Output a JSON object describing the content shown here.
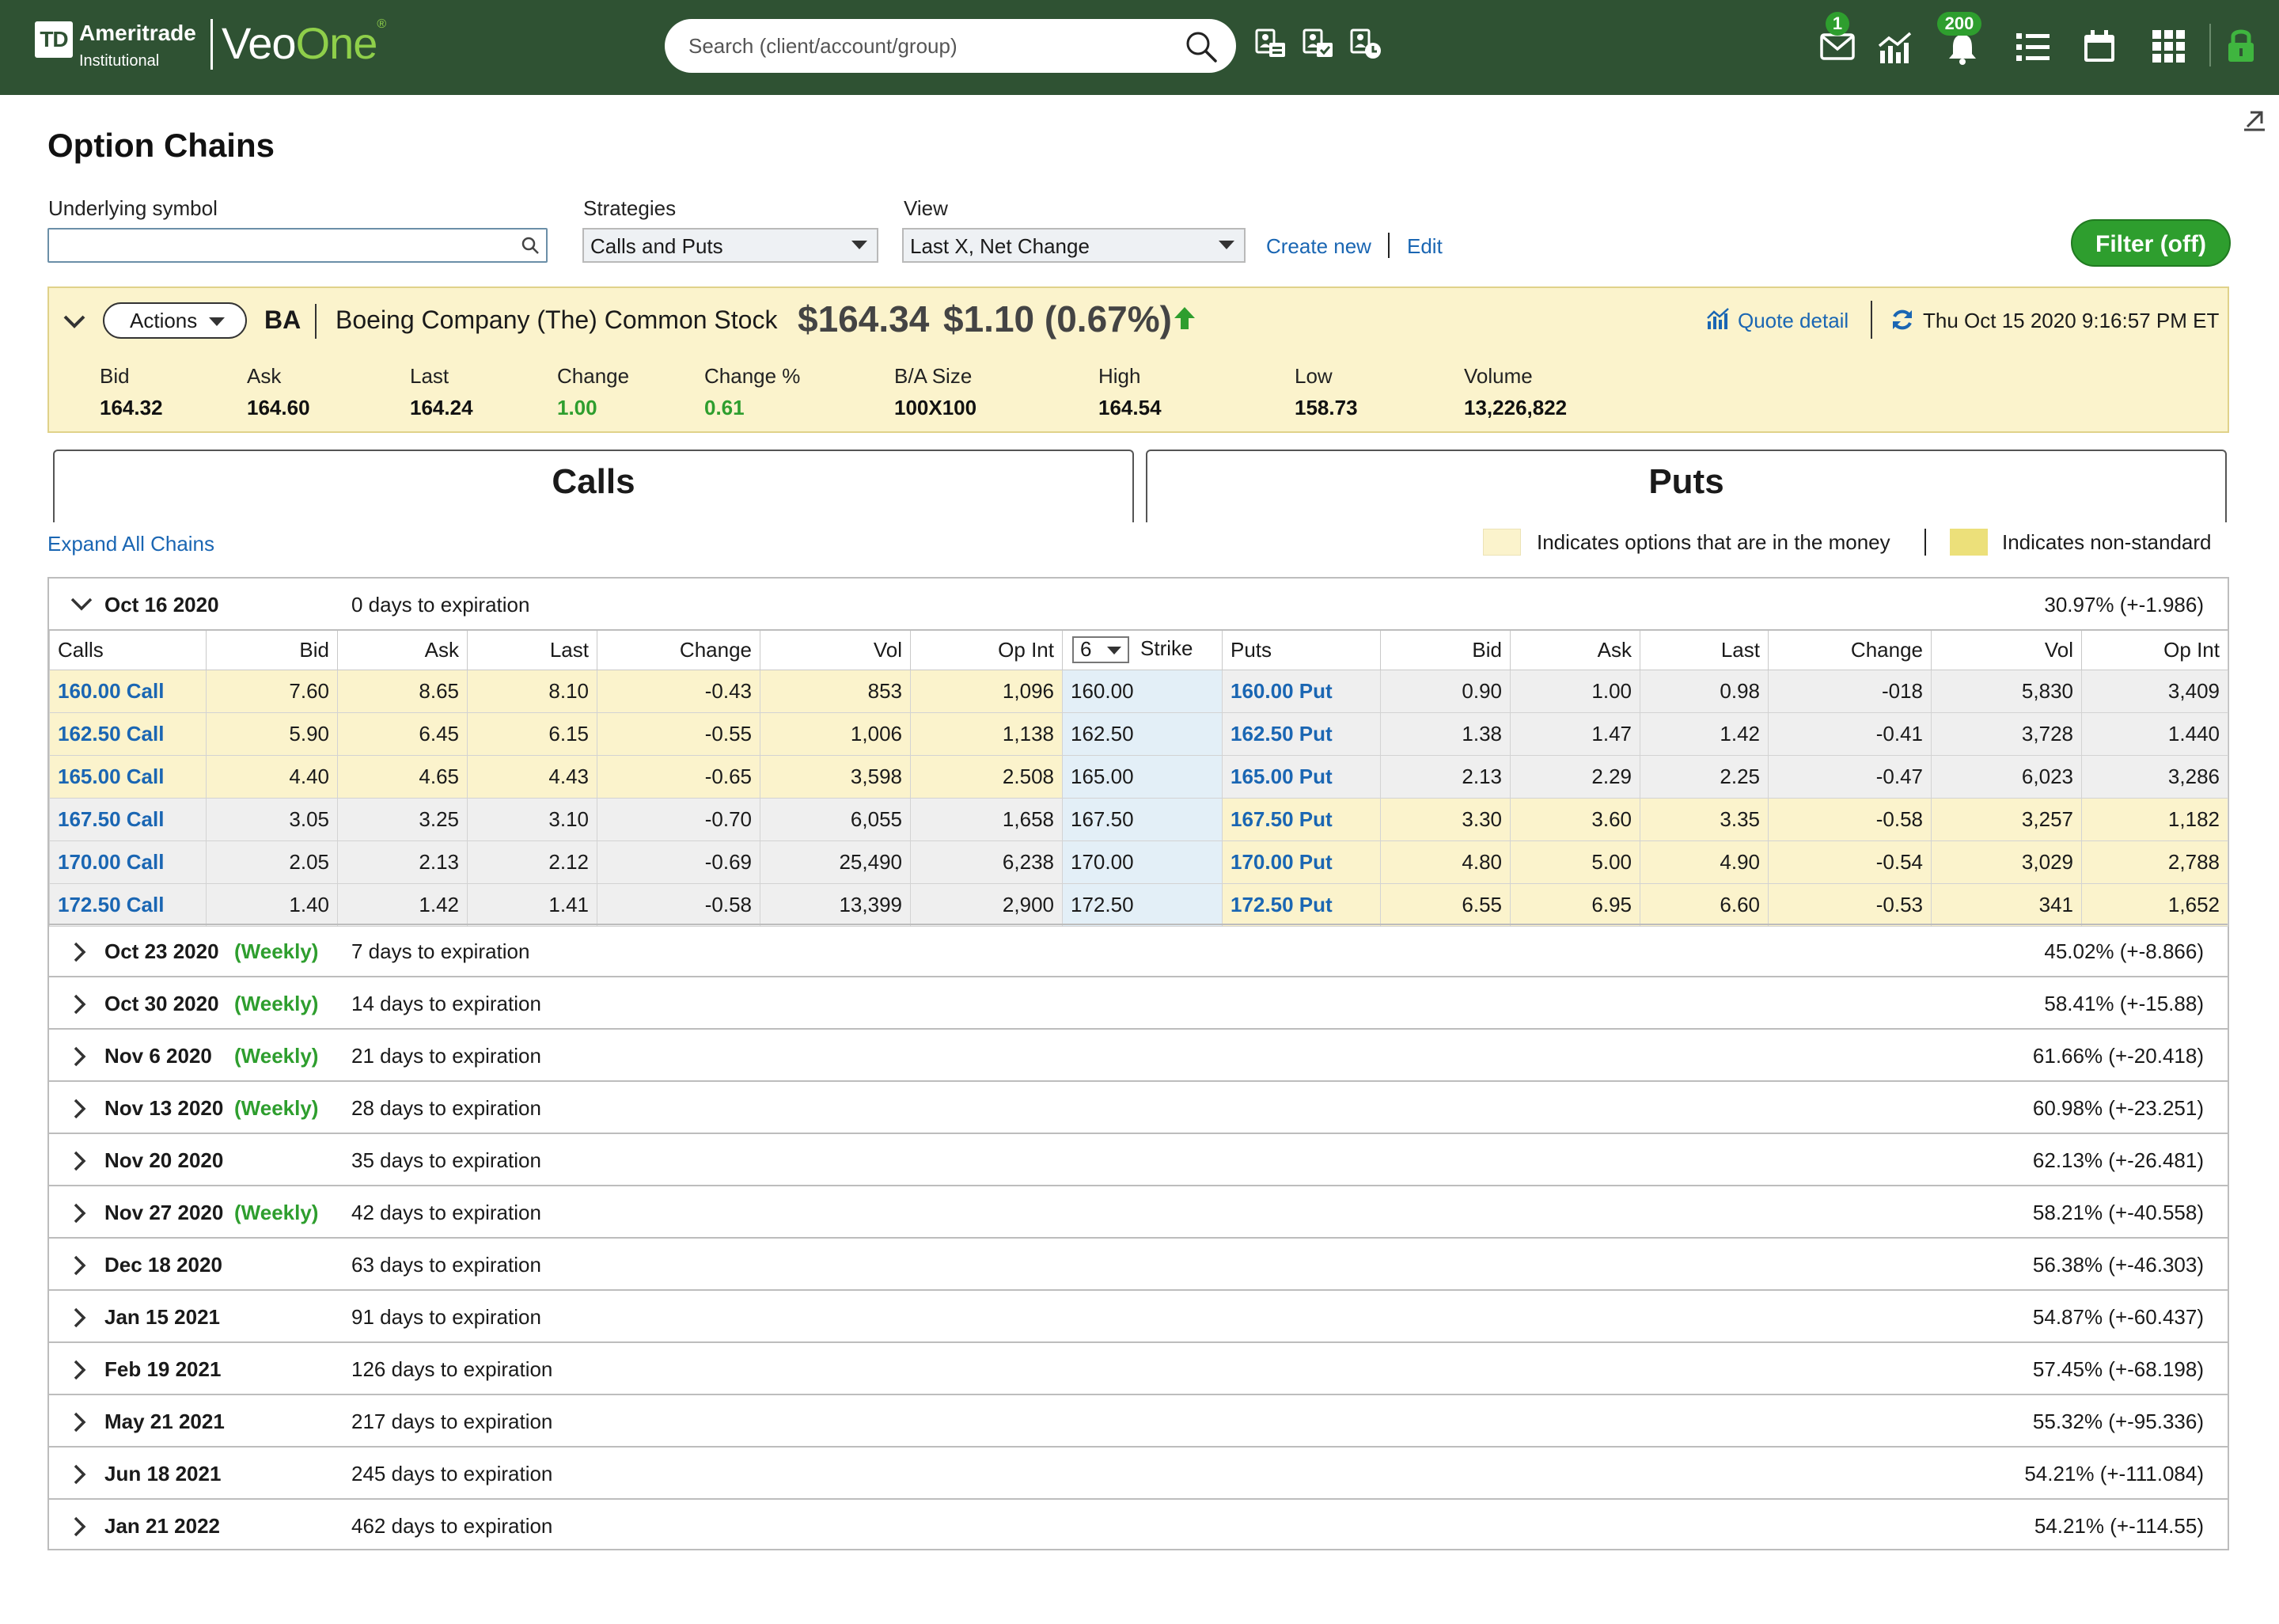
{
  "header": {
    "brand_mark": "TD",
    "brand_name": "Ameritrade",
    "brand_sub": "Institutional",
    "product_a": "Veo",
    "product_b": "One",
    "product_reg": "®",
    "search_placeholder": "Search (client/account/group)",
    "mail_badge": "1",
    "alerts_badge": "200",
    "icons": [
      "client-icon",
      "account-icon",
      "group-icon",
      "mail-icon",
      "chart-icon",
      "bell-icon",
      "list-icon",
      "calendar-icon",
      "apps-icon",
      "lock-icon"
    ],
    "bg_color": "#2f5233"
  },
  "page": {
    "title": "Option Chains",
    "underlying_label": "Underlying symbol",
    "underlying_value": "",
    "strategies_label": "Strategies",
    "strategies_value": "Calls and Puts",
    "view_label": "View",
    "view_value": "Last X, Net Change",
    "create_new": "Create new",
    "edit": "Edit",
    "filter_button": "Filter (off)"
  },
  "quote": {
    "actions_label": "Actions",
    "symbol": "BA",
    "name": "Boeing Company (The) Common Stock",
    "price": "$164.34",
    "change": "$1.10 (0.67%)",
    "quote_detail": "Quote detail",
    "timestamp": "Thu Oct 15 2020 9:16:57 PM ET",
    "stats": [
      {
        "label": "Bid",
        "value": "164.32"
      },
      {
        "label": "Ask",
        "value": "164.60"
      },
      {
        "label": "Last",
        "value": "164.24"
      },
      {
        "label": "Change",
        "value": "1.00"
      },
      {
        "label": "Change %",
        "value": "0.61"
      },
      {
        "label": "B/A Size",
        "value": "100X100"
      },
      {
        "label": "High",
        "value": "164.54"
      },
      {
        "label": "Low",
        "value": "158.73"
      },
      {
        "label": "Volume",
        "value": "13,226,822"
      }
    ],
    "bg_color": "#fbf3cc"
  },
  "tabs": {
    "calls": "Calls",
    "puts": "Puts"
  },
  "legend": {
    "expand_all": "Expand All Chains",
    "in_money": "Indicates options that are in the money",
    "non_standard": "Indicates non-standard",
    "in_money_color": "#fbf3cc",
    "non_standard_color": "#ece07a"
  },
  "chain": {
    "date": "Oct 16 2020",
    "days": "0 days to expiration",
    "iv": "30.97% (+-1.986)",
    "depth": "6",
    "columns": {
      "calls": "Calls",
      "bid": "Bid",
      "ask": "Ask",
      "last": "Last",
      "change": "Change",
      "vol": "Vol",
      "opint": "Op Int",
      "strike": "Strike",
      "puts": "Puts"
    },
    "rows": [
      {
        "call": "160.00 Call",
        "c_bid": "7.60",
        "c_ask": "8.65",
        "c_last": "8.10",
        "c_chg": "-0.43",
        "c_vol": "853",
        "c_oi": "1,096",
        "strike": "160.00",
        "put": "160.00 Put",
        "p_bid": "0.90",
        "p_ask": "1.00",
        "p_last": "0.98",
        "p_chg": "-018",
        "p_vol": "5,830",
        "p_oi": "3,409"
      },
      {
        "call": "162.50 Call",
        "c_bid": "5.90",
        "c_ask": "6.45",
        "c_last": "6.15",
        "c_chg": "-0.55",
        "c_vol": "1,006",
        "c_oi": "1,138",
        "strike": "162.50",
        "put": "162.50 Put",
        "p_bid": "1.38",
        "p_ask": "1.47",
        "p_last": "1.42",
        "p_chg": "-0.41",
        "p_vol": "3,728",
        "p_oi": "1.440"
      },
      {
        "call": "165.00 Call",
        "c_bid": "4.40",
        "c_ask": "4.65",
        "c_last": "4.43",
        "c_chg": "-0.65",
        "c_vol": "3,598",
        "c_oi": "2.508",
        "strike": "165.00",
        "put": "165.00 Put",
        "p_bid": "2.13",
        "p_ask": "2.29",
        "p_last": "2.25",
        "p_chg": "-0.47",
        "p_vol": "6,023",
        "p_oi": "3,286"
      },
      {
        "call": "167.50 Call",
        "c_bid": "3.05",
        "c_ask": "3.25",
        "c_last": "3.10",
        "c_chg": "-0.70",
        "c_vol": "6,055",
        "c_oi": "1,658",
        "strike": "167.50",
        "put": "167.50 Put",
        "p_bid": "3.30",
        "p_ask": "3.60",
        "p_last": "3.35",
        "p_chg": "-0.58",
        "p_vol": "3,257",
        "p_oi": "1,182"
      },
      {
        "call": "170.00 Call",
        "c_bid": "2.05",
        "c_ask": "2.13",
        "c_last": "2.12",
        "c_chg": "-0.69",
        "c_vol": "25,490",
        "c_oi": "6,238",
        "strike": "170.00",
        "put": "170.00 Put",
        "p_bid": "4.80",
        "p_ask": "5.00",
        "p_last": "4.90",
        "p_chg": "-0.54",
        "p_vol": "3,029",
        "p_oi": "2,788"
      },
      {
        "call": "172.50 Call",
        "c_bid": "1.40",
        "c_ask": "1.42",
        "c_last": "1.41",
        "c_chg": "-0.58",
        "c_vol": "13,399",
        "c_oi": "2,900",
        "strike": "172.50",
        "put": "172.50 Put",
        "p_bid": "6.55",
        "p_ask": "6.95",
        "p_last": "6.60",
        "p_chg": "-0.53",
        "p_vol": "341",
        "p_oi": "1,652"
      }
    ]
  },
  "expirations": [
    {
      "date": "Oct 23 2020",
      "weekly": "(Weekly)",
      "days": "7 days to expiration",
      "iv": "45.02% (+-8.866)"
    },
    {
      "date": "Oct 30 2020",
      "weekly": "(Weekly)",
      "days": "14 days to expiration",
      "iv": "58.41% (+-15.88)"
    },
    {
      "date": "Nov 6 2020",
      "weekly": "(Weekly)",
      "days": "21 days to expiration",
      "iv": "61.66% (+-20.418)"
    },
    {
      "date": "Nov 13 2020",
      "weekly": "(Weekly)",
      "days": "28 days to expiration",
      "iv": "60.98% (+-23.251)"
    },
    {
      "date": "Nov 20 2020",
      "weekly": "",
      "days": "35 days to expiration",
      "iv": "62.13% (+-26.481)"
    },
    {
      "date": "Nov 27 2020",
      "weekly": "(Weekly)",
      "days": "42 days to expiration",
      "iv": "58.21% (+-40.558)"
    },
    {
      "date": "Dec 18 2020",
      "weekly": "",
      "days": "63 days to expiration",
      "iv": "56.38% (+-46.303)"
    },
    {
      "date": "Jan 15 2021",
      "weekly": "",
      "days": "91 days to expiration",
      "iv": "54.87% (+-60.437)"
    },
    {
      "date": "Feb 19 2021",
      "weekly": "",
      "days": "126 days to expiration",
      "iv": "57.45% (+-68.198)"
    },
    {
      "date": "May 21 2021",
      "weekly": "",
      "days": "217 days to expiration",
      "iv": "55.32% (+-95.336)"
    },
    {
      "date": "Jun 18 2021",
      "weekly": "",
      "days": "245 days to expiration",
      "iv": "54.21% (+-111.084)"
    },
    {
      "date": "Jan 21 2022",
      "weekly": "",
      "days": "462 days to expiration",
      "iv": "54.21% (+-114.55)"
    }
  ]
}
